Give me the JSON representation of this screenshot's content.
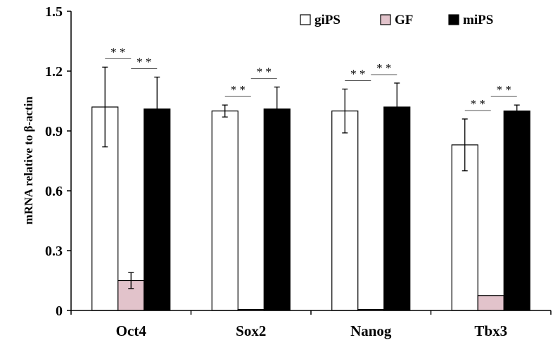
{
  "chart_data": {
    "type": "bar",
    "categories": [
      "Oct4",
      "Sox2",
      "Nanog",
      "Tbx3"
    ],
    "series": [
      {
        "name": "giPS",
        "values": [
          1.02,
          1.0,
          1.0,
          0.83
        ],
        "errors": [
          0.2,
          0.03,
          0.11,
          0.13
        ],
        "color": "#ffffff"
      },
      {
        "name": "GF",
        "values": [
          0.15,
          0.005,
          0.005,
          0.075
        ],
        "errors": [
          0.04,
          0.0,
          0.0,
          0.0
        ],
        "color": "#e2c3cb"
      },
      {
        "name": "miPS",
        "values": [
          1.01,
          1.01,
          1.02,
          1.0
        ],
        "errors": [
          0.16,
          0.11,
          0.12,
          0.03
        ],
        "color": "#000000"
      }
    ],
    "ylabel": "mRNA relative to β-actin",
    "xlabel": "",
    "ylim": [
      0,
      1.5
    ],
    "yticks": [
      "0",
      "0.3",
      "0.6",
      "0.9",
      "1.2",
      "1.5"
    ],
    "legend_position": "top-right",
    "significance": [
      {
        "category": "Oct4",
        "from": "giPS",
        "to": "GF",
        "label": "* *"
      },
      {
        "category": "Oct4",
        "from": "GF",
        "to": "miPS",
        "label": "* *"
      },
      {
        "category": "Sox2",
        "from": "giPS",
        "to": "GF",
        "label": "* *"
      },
      {
        "category": "Sox2",
        "from": "GF",
        "to": "miPS",
        "label": "* *"
      },
      {
        "category": "Nanog",
        "from": "giPS",
        "to": "GF",
        "label": "* *"
      },
      {
        "category": "Nanog",
        "from": "GF",
        "to": "miPS",
        "label": "* *"
      },
      {
        "category": "Tbx3",
        "from": "giPS",
        "to": "GF",
        "label": "* *"
      },
      {
        "category": "Tbx3",
        "from": "GF",
        "to": "miPS",
        "label": "* *"
      }
    ]
  }
}
